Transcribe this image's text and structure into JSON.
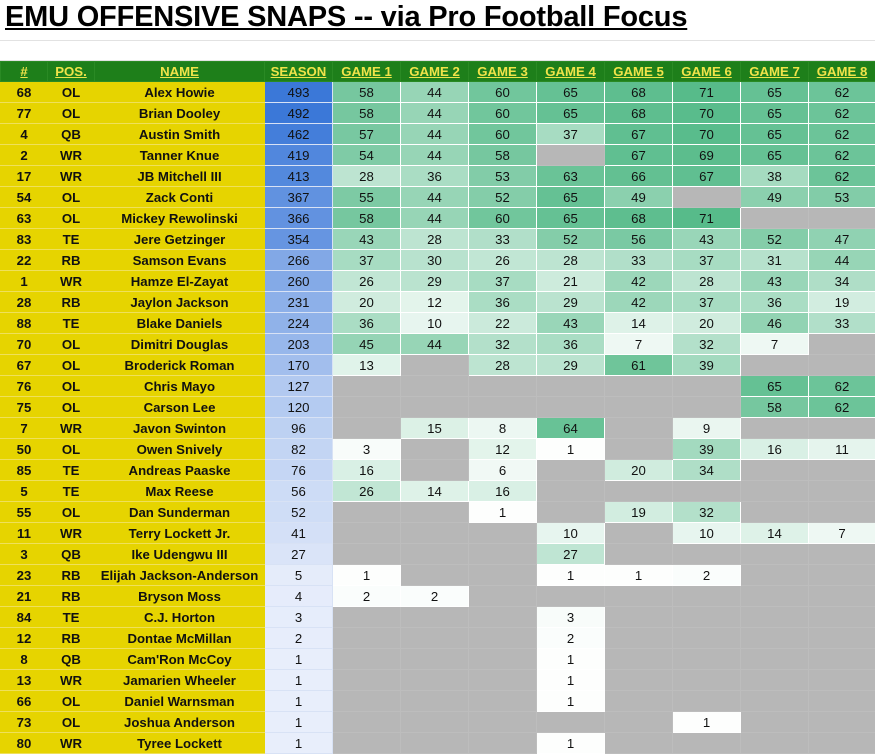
{
  "title": "EMU OFFENSIVE SNAPS -- via Pro Football Focus",
  "colors": {
    "header_bg": "#1e7f1a",
    "header_text": "#f0e34a",
    "left_cols_bg": "#e6d400",
    "no_data_cell": "#b7b7b7",
    "season_scale_low": "#e8eefb",
    "season_scale_high": "#3b78d8",
    "game_scale_low": "#ffffff",
    "game_scale_high": "#57bb8a"
  },
  "columns": [
    "#",
    "POS.",
    "NAME",
    "SEASON",
    "GAME 1",
    "GAME 2",
    "GAME 3",
    "GAME 4",
    "GAME 5",
    "GAME 6",
    "GAME 7",
    "GAME 8"
  ],
  "rows": [
    {
      "num": "68",
      "pos": "OL",
      "name": "Alex Howie",
      "season": "493",
      "games": [
        "58",
        "44",
        "60",
        "65",
        "68",
        "71",
        "65",
        "62"
      ]
    },
    {
      "num": "77",
      "pos": "OL",
      "name": "Brian Dooley",
      "season": "492",
      "games": [
        "58",
        "44",
        "60",
        "65",
        "68",
        "70",
        "65",
        "62"
      ]
    },
    {
      "num": "4",
      "pos": "QB",
      "name": "Austin Smith",
      "season": "462",
      "games": [
        "57",
        "44",
        "60",
        "37",
        "67",
        "70",
        "65",
        "62"
      ]
    },
    {
      "num": "2",
      "pos": "WR",
      "name": "Tanner Knue",
      "season": "419",
      "games": [
        "54",
        "44",
        "58",
        null,
        "67",
        "69",
        "65",
        "62"
      ]
    },
    {
      "num": "17",
      "pos": "WR",
      "name": "JB Mitchell III",
      "season": "413",
      "games": [
        "28",
        "36",
        "53",
        "63",
        "66",
        "67",
        "38",
        "62"
      ]
    },
    {
      "num": "54",
      "pos": "OL",
      "name": "Zack Conti",
      "season": "367",
      "games": [
        "55",
        "44",
        "52",
        "65",
        "49",
        null,
        "49",
        "53"
      ]
    },
    {
      "num": "63",
      "pos": "OL",
      "name": "Mickey Rewolinski",
      "season": "366",
      "games": [
        "58",
        "44",
        "60",
        "65",
        "68",
        "71",
        null,
        null
      ]
    },
    {
      "num": "83",
      "pos": "TE",
      "name": "Jere Getzinger",
      "season": "354",
      "games": [
        "43",
        "28",
        "33",
        "52",
        "56",
        "43",
        "52",
        "47"
      ]
    },
    {
      "num": "22",
      "pos": "RB",
      "name": "Samson Evans",
      "season": "266",
      "games": [
        "37",
        "30",
        "26",
        "28",
        "33",
        "37",
        "31",
        "44"
      ]
    },
    {
      "num": "1",
      "pos": "WR",
      "name": "Hamze El-Zayat",
      "season": "260",
      "games": [
        "26",
        "29",
        "37",
        "21",
        "42",
        "28",
        "43",
        "34"
      ]
    },
    {
      "num": "28",
      "pos": "RB",
      "name": "Jaylon Jackson",
      "season": "231",
      "games": [
        "20",
        "12",
        "36",
        "29",
        "42",
        "37",
        "36",
        "19"
      ]
    },
    {
      "num": "88",
      "pos": "TE",
      "name": "Blake Daniels",
      "season": "224",
      "games": [
        "36",
        "10",
        "22",
        "43",
        "14",
        "20",
        "46",
        "33"
      ]
    },
    {
      "num": "70",
      "pos": "OL",
      "name": "Dimitri Douglas",
      "season": "203",
      "games": [
        "45",
        "44",
        "32",
        "36",
        "7",
        "32",
        "7",
        null
      ]
    },
    {
      "num": "67",
      "pos": "OL",
      "name": "Broderick Roman",
      "season": "170",
      "games": [
        "13",
        null,
        "28",
        "29",
        "61",
        "39",
        null,
        null
      ]
    },
    {
      "num": "76",
      "pos": "OL",
      "name": "Chris Mayo",
      "season": "127",
      "games": [
        null,
        null,
        null,
        null,
        null,
        null,
        "65",
        "62"
      ]
    },
    {
      "num": "75",
      "pos": "OL",
      "name": "Carson Lee",
      "season": "120",
      "games": [
        null,
        null,
        null,
        null,
        null,
        null,
        "58",
        "62"
      ]
    },
    {
      "num": "7",
      "pos": "WR",
      "name": "Javon Swinton",
      "season": "96",
      "games": [
        null,
        "15",
        "8",
        "64",
        null,
        "9",
        null,
        null
      ]
    },
    {
      "num": "50",
      "pos": "OL",
      "name": "Owen Snively",
      "season": "82",
      "games": [
        "3",
        null,
        "12",
        "1",
        null,
        "39",
        "16",
        "11"
      ]
    },
    {
      "num": "85",
      "pos": "TE",
      "name": "Andreas Paaske",
      "season": "76",
      "games": [
        "16",
        null,
        "6",
        null,
        "20",
        "34",
        null,
        null
      ]
    },
    {
      "num": "5",
      "pos": "TE",
      "name": "Max Reese",
      "season": "56",
      "games": [
        "26",
        "14",
        "16",
        null,
        null,
        null,
        null,
        null
      ]
    },
    {
      "num": "55",
      "pos": "OL",
      "name": "Dan Sunderman",
      "season": "52",
      "games": [
        null,
        null,
        "1",
        null,
        "19",
        "32",
        null,
        null
      ]
    },
    {
      "num": "11",
      "pos": "WR",
      "name": "Terry Lockett Jr.",
      "season": "41",
      "games": [
        null,
        null,
        null,
        "10",
        null,
        "10",
        "14",
        "7"
      ]
    },
    {
      "num": "3",
      "pos": "QB",
      "name": "Ike Udengwu III",
      "season": "27",
      "games": [
        null,
        null,
        null,
        "27",
        null,
        null,
        null,
        null
      ]
    },
    {
      "num": "23",
      "pos": "RB",
      "name": "Elijah Jackson-Anderson",
      "season": "5",
      "games": [
        "1",
        null,
        null,
        "1",
        "1",
        "2",
        null,
        null
      ]
    },
    {
      "num": "21",
      "pos": "RB",
      "name": "Bryson Moss",
      "season": "4",
      "games": [
        "2",
        "2",
        null,
        null,
        null,
        null,
        null,
        null
      ]
    },
    {
      "num": "84",
      "pos": "TE",
      "name": "C.J. Horton",
      "season": "3",
      "games": [
        null,
        null,
        null,
        "3",
        null,
        null,
        null,
        null
      ]
    },
    {
      "num": "12",
      "pos": "RB",
      "name": "Dontae McMillan",
      "season": "2",
      "games": [
        null,
        null,
        null,
        "2",
        null,
        null,
        null,
        null
      ]
    },
    {
      "num": "8",
      "pos": "QB",
      "name": "Cam'Ron McCoy",
      "season": "1",
      "games": [
        null,
        null,
        null,
        "1",
        null,
        null,
        null,
        null
      ]
    },
    {
      "num": "13",
      "pos": "WR",
      "name": "Jamarien Wheeler",
      "season": "1",
      "games": [
        null,
        null,
        null,
        "1",
        null,
        null,
        null,
        null
      ]
    },
    {
      "num": "66",
      "pos": "OL",
      "name": "Daniel Warnsman",
      "season": "1",
      "games": [
        null,
        null,
        null,
        "1",
        null,
        null,
        null,
        null
      ]
    },
    {
      "num": "73",
      "pos": "OL",
      "name": "Joshua Anderson",
      "season": "1",
      "games": [
        null,
        null,
        null,
        null,
        null,
        "1",
        null,
        null
      ]
    },
    {
      "num": "80",
      "pos": "WR",
      "name": "Tyree Lockett",
      "season": "1",
      "games": [
        null,
        null,
        null,
        "1",
        null,
        null,
        null,
        null
      ]
    }
  ]
}
